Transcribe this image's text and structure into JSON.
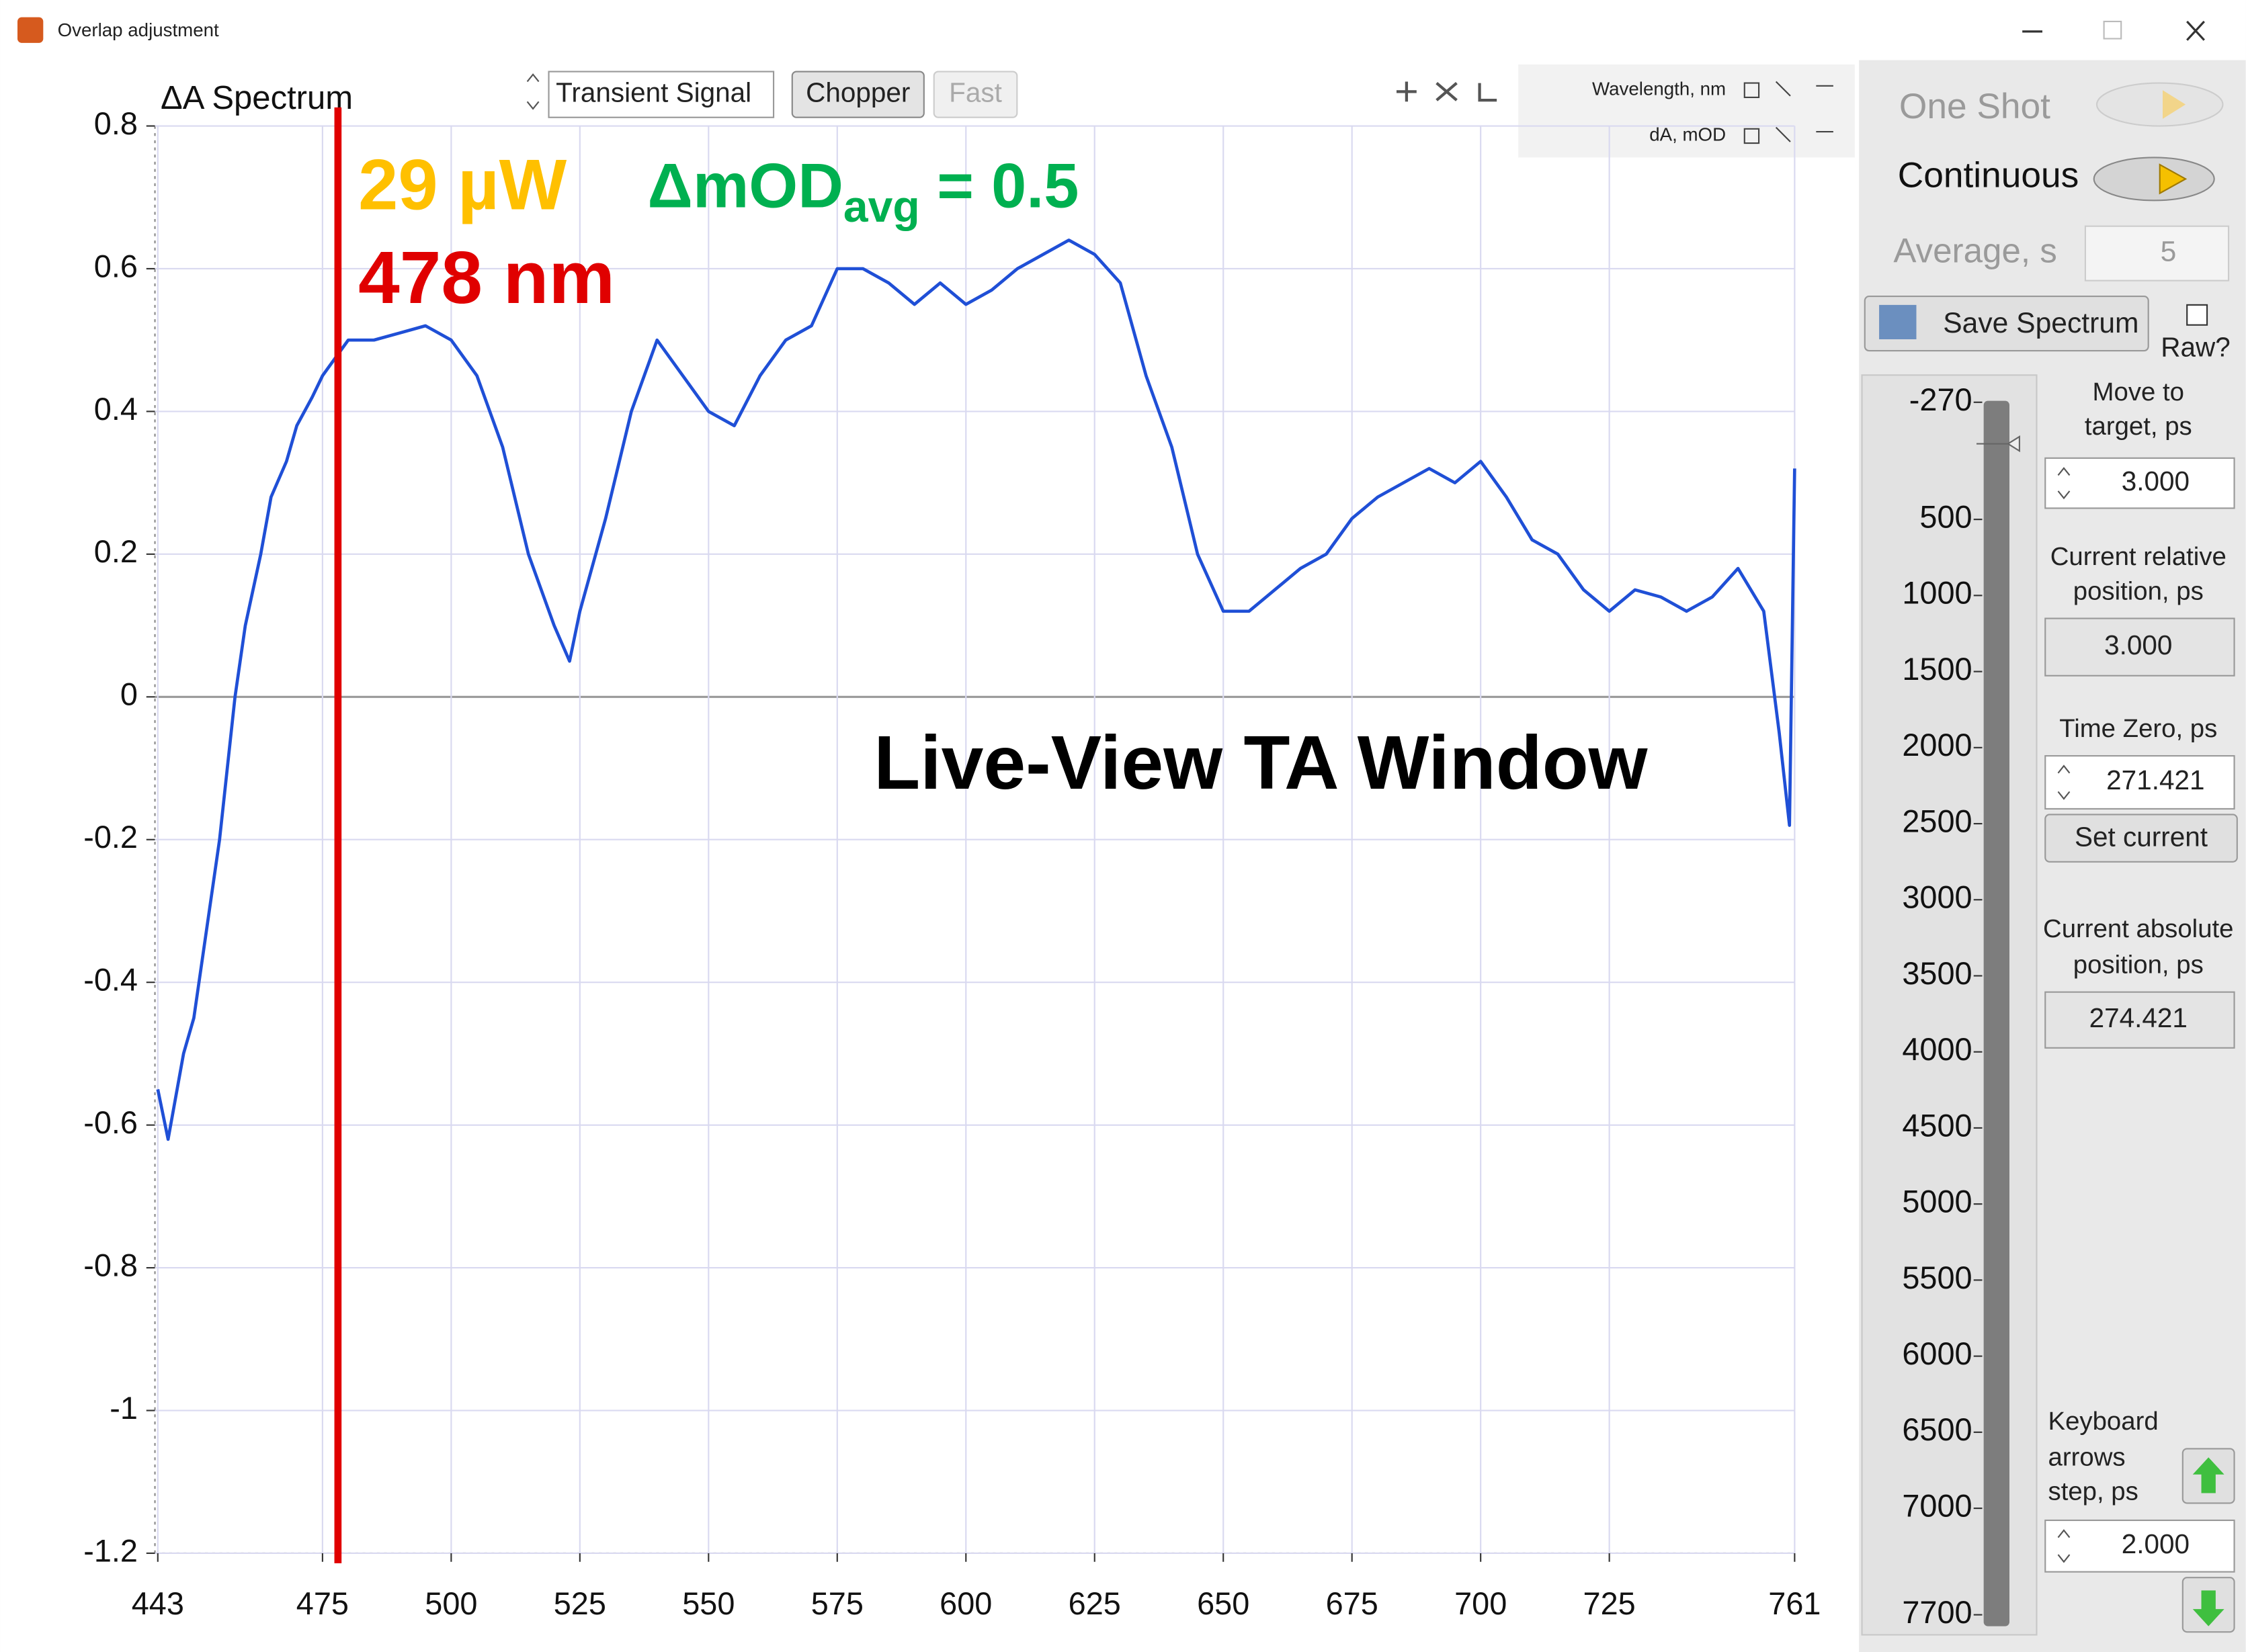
{
  "window": {
    "title": "Overlap adjustment"
  },
  "toolbar": {
    "plot_label": "ΔA Spectrum",
    "signal": "Transient Signal",
    "chopper": "Chopper",
    "fast": "Fast",
    "x_unit": "Wavelength, nm",
    "y_unit": "dA, mOD"
  },
  "chart_data": {
    "type": "line",
    "color": "#1f4fd6",
    "x": [
      443,
      445,
      448,
      450,
      453,
      455,
      458,
      460,
      463,
      465,
      468,
      470,
      473,
      475,
      478,
      480,
      485,
      490,
      495,
      500,
      505,
      510,
      515,
      520,
      523,
      525,
      530,
      535,
      540,
      545,
      550,
      555,
      560,
      565,
      570,
      575,
      580,
      585,
      590,
      595,
      600,
      605,
      610,
      615,
      620,
      625,
      630,
      635,
      640,
      645,
      650,
      655,
      660,
      665,
      670,
      675,
      680,
      685,
      690,
      695,
      700,
      705,
      710,
      715,
      720,
      725,
      730,
      735,
      740,
      745,
      750,
      755,
      758,
      760,
      761
    ],
    "values": [
      -0.55,
      -0.62,
      -0.5,
      -0.45,
      -0.3,
      -0.2,
      0,
      0.1,
      0.2,
      0.28,
      0.33,
      0.38,
      0.42,
      0.45,
      0.48,
      0.5,
      0.5,
      0.51,
      0.52,
      0.5,
      0.45,
      0.35,
      0.2,
      0.1,
      0.05,
      0.12,
      0.25,
      0.4,
      0.5,
      0.45,
      0.4,
      0.38,
      0.45,
      0.5,
      0.52,
      0.6,
      0.6,
      0.58,
      0.55,
      0.58,
      0.55,
      0.57,
      0.6,
      0.62,
      0.64,
      0.62,
      0.58,
      0.45,
      0.35,
      0.2,
      0.12,
      0.12,
      0.15,
      0.18,
      0.2,
      0.25,
      0.28,
      0.3,
      0.32,
      0.3,
      0.33,
      0.28,
      0.22,
      0.2,
      0.15,
      0.12,
      0.15,
      0.14,
      0.12,
      0.14,
      0.18,
      0.12,
      -0.05,
      -0.18,
      0.32
    ],
    "xlim": [
      443,
      761
    ],
    "xticks": [
      443,
      475,
      500,
      525,
      550,
      575,
      600,
      625,
      650,
      675,
      700,
      725,
      761
    ],
    "ylim": [
      -1.2,
      0.8
    ],
    "yticks": [
      0.8,
      0.6,
      0.4,
      0.2,
      0,
      -0.2,
      -0.4,
      -0.6,
      -0.8,
      -1,
      -1.2
    ],
    "grid": true,
    "marker": {
      "value": 478,
      "color": "#e00000",
      "label": "478 nm"
    },
    "annotations": {
      "power": "29 µW",
      "delta_mod": "ΔmOD",
      "delta_mod_sub": "avg",
      "delta_mod_rest": "= 0.5",
      "overlay": "Live-View TA Window"
    }
  },
  "controls": {
    "one_shot": "One Shot",
    "continuous": "Continuous",
    "average_label": "Average, s",
    "average_value": "5",
    "save": "Save Spectrum",
    "raw": "Raw?",
    "stage": {
      "lim": [
        -270,
        7700
      ],
      "ticks": [
        -270,
        500,
        1000,
        1500,
        2000,
        2500,
        3000,
        3500,
        4000,
        4500,
        5000,
        5500,
        6000,
        6500,
        7000,
        7700
      ]
    },
    "move_target": {
      "label": [
        "Move to",
        "target, ps"
      ],
      "value": "3.000"
    },
    "relative": {
      "label": [
        "Current relative",
        "position, ps"
      ],
      "value": "3.000"
    },
    "time_zero": {
      "label": [
        "Time Zero, ps"
      ],
      "value": "271.421"
    },
    "set_current": "Set current",
    "absolute": {
      "label": [
        "Current absolute",
        "position, ps"
      ],
      "value": "274.421"
    },
    "step": {
      "label": [
        "Keyboard",
        "arrows",
        "step, ps"
      ],
      "value": "2.000"
    }
  }
}
